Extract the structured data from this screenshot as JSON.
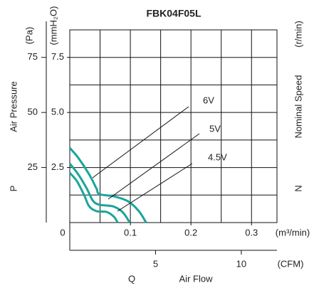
{
  "chart_data": {
    "type": "line",
    "title": "FBK04F05L",
    "x_label": "Air Flow",
    "x_symbol": "Q",
    "x_unit": "(m³/min)",
    "x2_unit": "(CFM)",
    "y_label": "Air Pressure",
    "y_symbol": "P",
    "y_unit": "(mmH₂O)",
    "y2_unit": "(Pa)",
    "y3_label": "Nominal Speed",
    "y3_symbol": "N",
    "y3_unit": "(r/min)",
    "xlim": [
      0,
      0.342
    ],
    "xticks": [
      0,
      0.1,
      0.2,
      0.3
    ],
    "xgrid": [
      0.05,
      0.1,
      0.15,
      0.2,
      0.25,
      0.3
    ],
    "x2lim": [
      0,
      12.08
    ],
    "x2ticks": [
      5,
      10
    ],
    "ylim": [
      0,
      8.75
    ],
    "yticks": [
      2.5,
      {
        "value": 5,
        "label": "5.0"
      },
      7.5
    ],
    "ygrid": [
      1.25,
      2.5,
      3.75,
      5,
      6.25,
      7.5
    ],
    "y2lim": [
      0,
      87.5
    ],
    "y2ticks": [
      25,
      50,
      75
    ],
    "grid": true,
    "series": [
      {
        "name": "6V",
        "color": "#1aa59a",
        "x": [
          0,
          0.014,
          0.032,
          0.044,
          0.049,
          0.073,
          0.096,
          0.114,
          0.126
        ],
        "values": [
          3.39,
          2.94,
          2.19,
          1.55,
          1.29,
          1.19,
          0.97,
          0.52,
          0
        ]
      },
      {
        "name": "5V",
        "color": "#1aa59a",
        "x": [
          0,
          0.014,
          0.028,
          0.038,
          0.049,
          0.071,
          0.087,
          0.099
        ],
        "values": [
          2.68,
          2.19,
          1.55,
          1.0,
          0.81,
          0.74,
          0.48,
          0
        ]
      },
      {
        "name": "4.5V",
        "color": "#1aa59a",
        "x": [
          0,
          0.012,
          0.024,
          0.032,
          0.044,
          0.061,
          0.073,
          0.079
        ],
        "values": [
          2.26,
          1.87,
          1.23,
          0.74,
          0.52,
          0.48,
          0.26,
          0
        ]
      }
    ]
  }
}
